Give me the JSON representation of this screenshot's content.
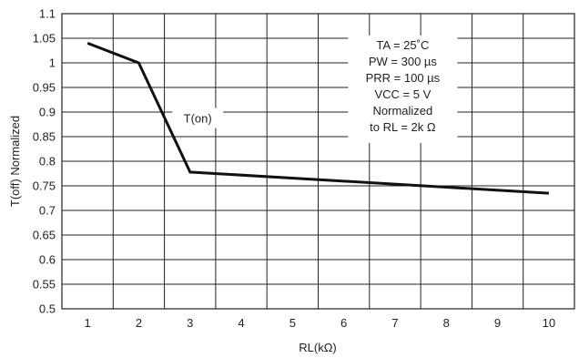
{
  "chart_data": {
    "type": "line",
    "xlabel": "RL(kΩ)",
    "ylabel": "T(off) Normalized",
    "xlim": [
      0.5,
      10.5
    ],
    "ylim": [
      0.5,
      1.1
    ],
    "x_ticks": [
      "1",
      "2",
      "3",
      "4",
      "5",
      "6",
      "7",
      "8",
      "9",
      "10"
    ],
    "y_ticks": [
      "0.5",
      "0.55",
      "0.6",
      "0.65",
      "0.7",
      "0.75",
      "0.8",
      "0.85",
      "0.9",
      "0.95",
      "1",
      "1.05",
      "1.1"
    ],
    "grid": true,
    "series": [
      {
        "name": "T(on)",
        "x": [
          1,
          2,
          3,
          10
        ],
        "y": [
          1.04,
          1.0,
          0.778,
          0.735
        ]
      }
    ],
    "annotations": {
      "curve_label": "T(on)",
      "conditions": [
        "TA = 25˚C",
        "PW = 300 µs",
        "PRR = 100 µs",
        "VCC = 5 V",
        "Normalized",
        "to RL = 2k Ω"
      ]
    }
  }
}
